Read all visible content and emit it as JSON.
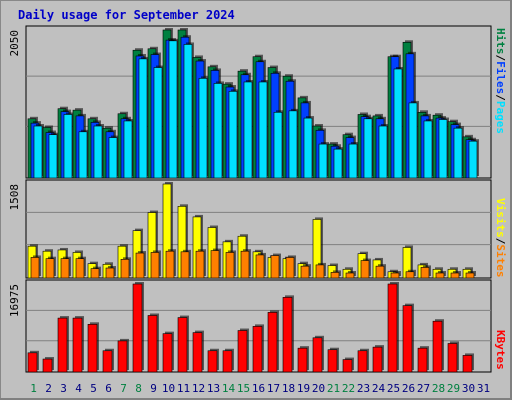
{
  "colors": {
    "hits": "#008040",
    "files": "#0040ff",
    "pages": "#00e0ff",
    "visits": "#ffff00",
    "sites": "#ff8000",
    "kbytes": "#ff0000",
    "title": "#0000c8",
    "weekend_label": "#008040",
    "weekday_label": "#000080",
    "plot_bg": "#c0c0c0",
    "grid": "#808080"
  },
  "chart_data": [
    {
      "type": "bar",
      "title": "Daily usage for September 2024",
      "ylabel_top": "2050",
      "ylim": [
        0,
        2050
      ],
      "categories": [
        "1",
        "2",
        "3",
        "4",
        "5",
        "6",
        "7",
        "8",
        "9",
        "10",
        "11",
        "12",
        "13",
        "14",
        "15",
        "16",
        "17",
        "18",
        "19",
        "20",
        "21",
        "22",
        "23",
        "24",
        "25",
        "26",
        "27",
        "28",
        "29",
        "30",
        "31"
      ],
      "series": [
        {
          "name": "Hits",
          "values": [
            820,
            700,
            960,
            940,
            820,
            690,
            890,
            1770,
            1790,
            2050,
            2050,
            1670,
            1540,
            1300,
            1480,
            1680,
            1530,
            1410,
            1110,
            720,
            470,
            600,
            880,
            860,
            1680,
            1880,
            910,
            870,
            780,
            570,
            0
          ]
        },
        {
          "name": "Files",
          "values": [
            760,
            630,
            920,
            860,
            770,
            640,
            820,
            1690,
            1710,
            1910,
            1950,
            1620,
            1490,
            1260,
            1430,
            1610,
            1450,
            1340,
            1040,
            660,
            440,
            560,
            850,
            820,
            1680,
            1720,
            860,
            830,
            740,
            530,
            0
          ]
        },
        {
          "name": "Pages",
          "values": [
            720,
            600,
            880,
            640,
            720,
            560,
            790,
            1650,
            1530,
            1900,
            1850,
            1380,
            1310,
            1200,
            1330,
            1330,
            910,
            930,
            830,
            470,
            400,
            470,
            820,
            720,
            1510,
            1040,
            790,
            810,
            690,
            510,
            0
          ]
        }
      ],
      "legend": [
        "Pages",
        "/",
        "Files",
        "/",
        "Hits"
      ]
    },
    {
      "type": "bar",
      "ylabel_top": "1508",
      "ylim": [
        0,
        1508
      ],
      "series": [
        {
          "name": "Visits",
          "values": [
            510,
            430,
            450,
            410,
            230,
            220,
            510,
            760,
            1050,
            1508,
            1150,
            980,
            810,
            580,
            670,
            420,
            330,
            310,
            230,
            940,
            200,
            140,
            390,
            290,
            100,
            490,
            210,
            140,
            140,
            140,
            0
          ]
        },
        {
          "name": "Sites",
          "values": [
            330,
            310,
            310,
            310,
            150,
            160,
            300,
            400,
            410,
            430,
            420,
            430,
            440,
            410,
            430,
            370,
            360,
            330,
            190,
            210,
            90,
            80,
            280,
            190,
            80,
            100,
            170,
            80,
            80,
            80,
            0
          ]
        }
      ],
      "legend": [
        "Sites",
        "/",
        "Visits"
      ]
    },
    {
      "type": "bar",
      "ylabel_top": "16975",
      "ylim": [
        0,
        16975
      ],
      "series": [
        {
          "name": "KBytes",
          "values": [
            3700,
            2500,
            10400,
            10400,
            9200,
            4100,
            6000,
            16975,
            10900,
            7400,
            10500,
            7600,
            4100,
            4100,
            8000,
            8800,
            11500,
            14400,
            4600,
            6600,
            4300,
            2400,
            4100,
            4800,
            16975,
            12800,
            4600,
            9800,
            5500,
            3200,
            0
          ]
        }
      ],
      "legend": [
        "KBytes"
      ]
    }
  ],
  "weekend_days": [
    "1",
    "7",
    "8",
    "14",
    "15",
    "21",
    "22",
    "28",
    "29"
  ]
}
